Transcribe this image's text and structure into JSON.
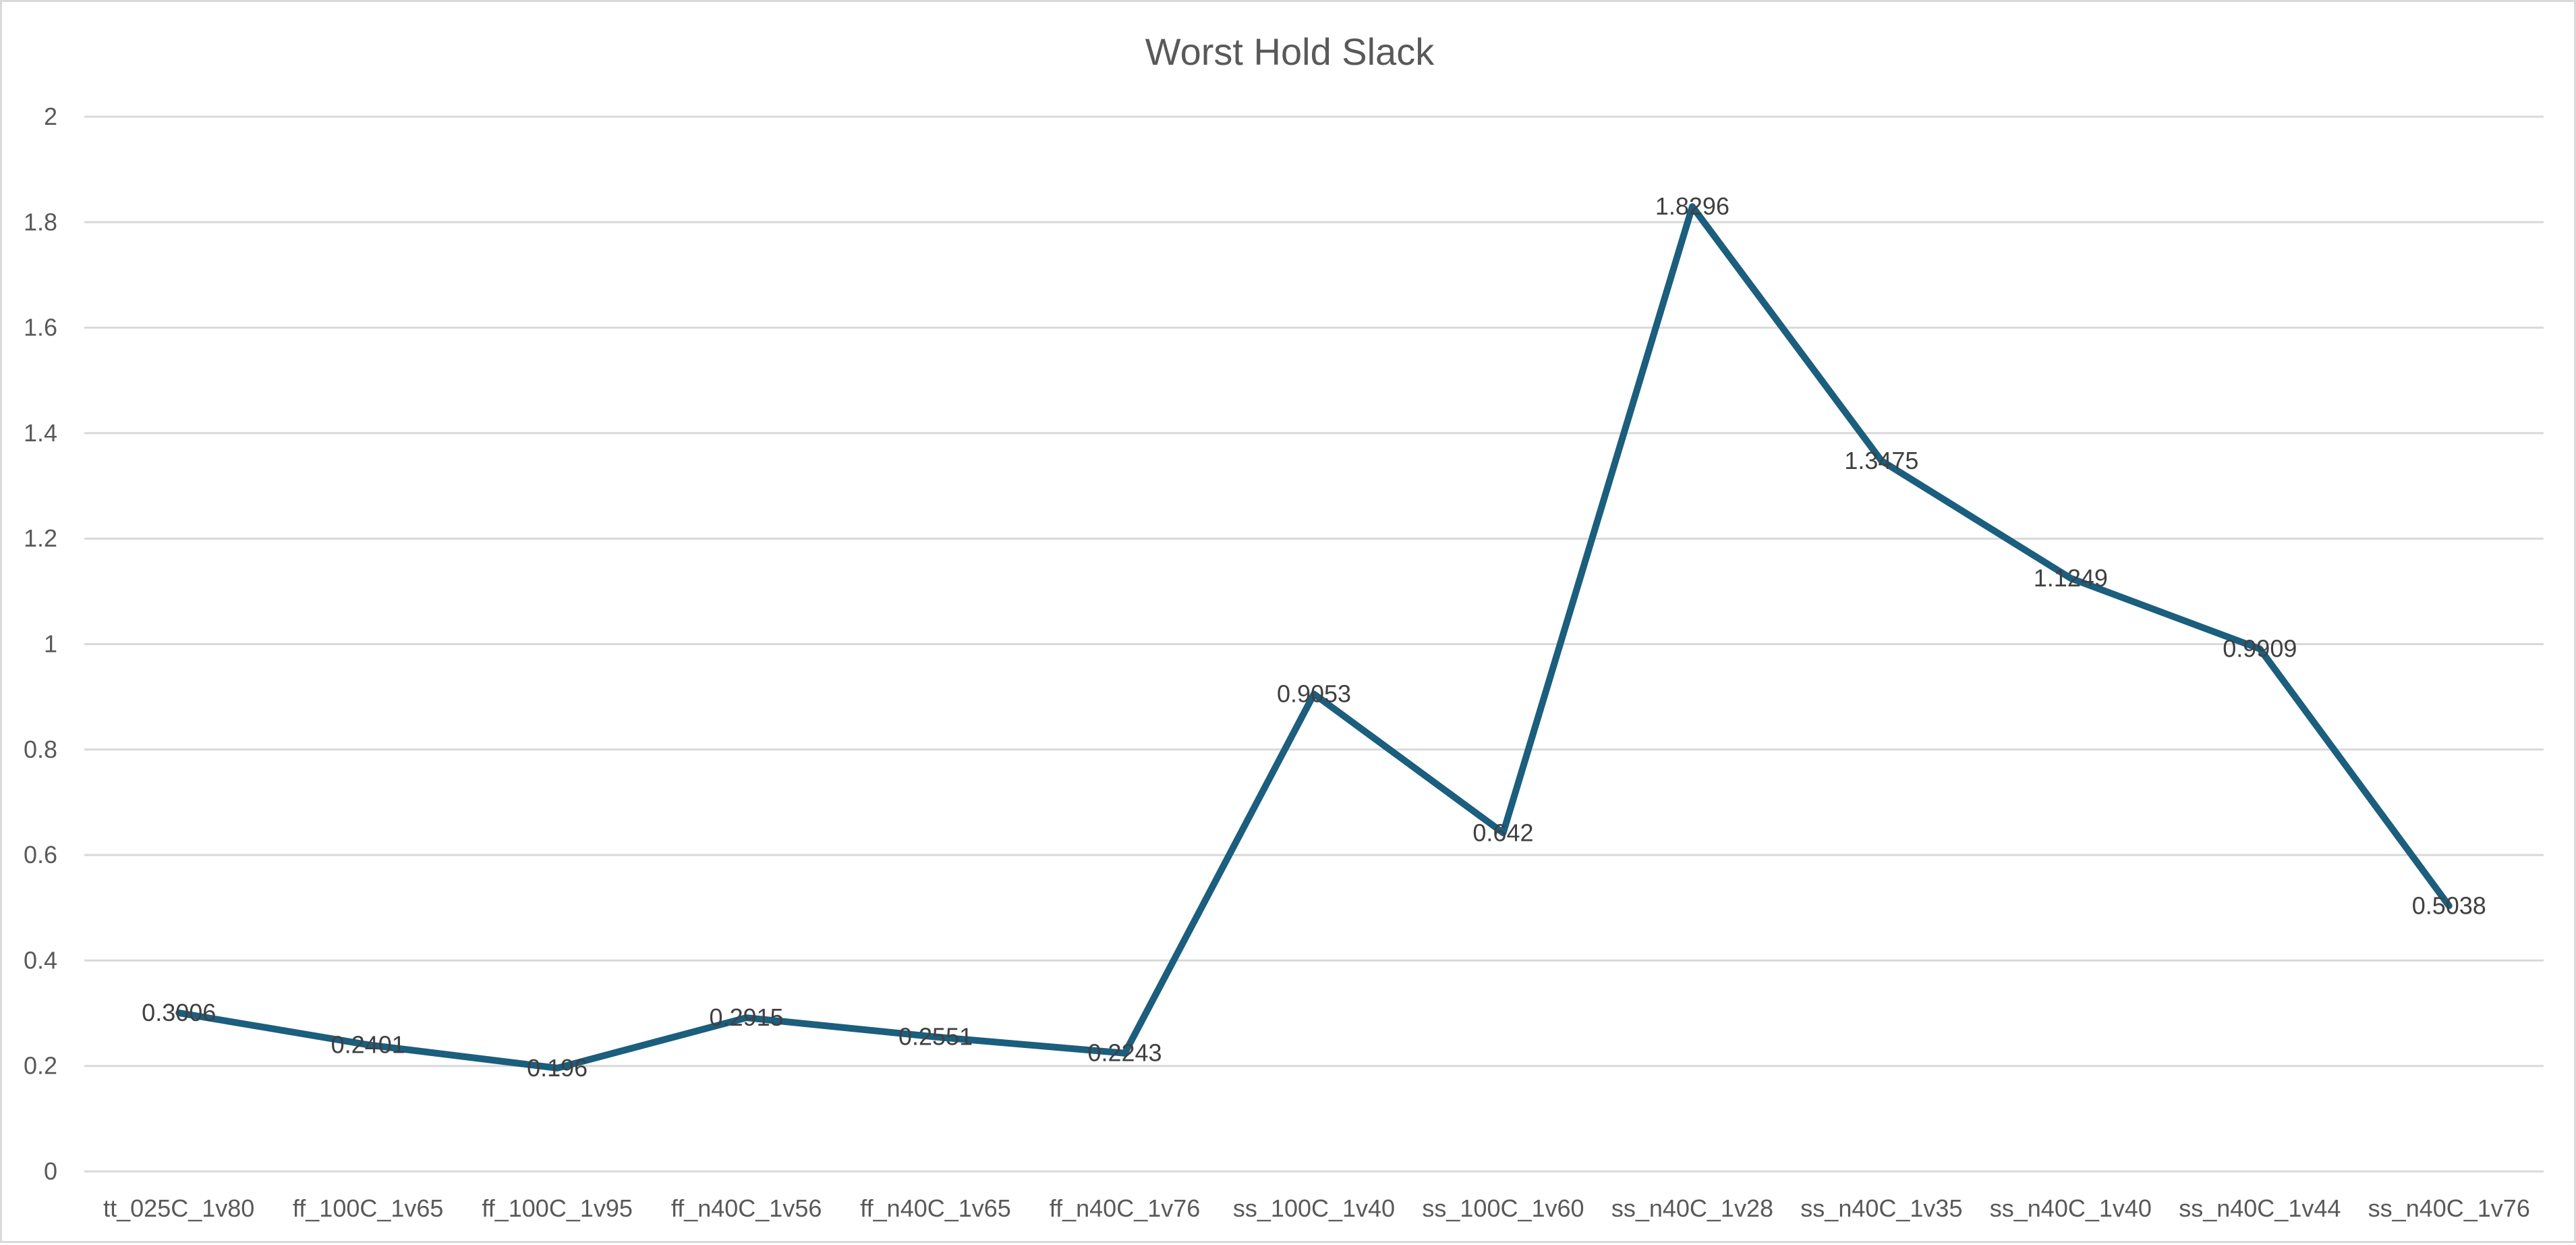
{
  "chart_data": {
    "type": "line",
    "title": "Worst Hold Slack",
    "xlabel": "",
    "ylabel": "",
    "ylim": [
      0,
      2
    ],
    "yticks": [
      0,
      0.2,
      0.4,
      0.6,
      0.8,
      1,
      1.2,
      1.4,
      1.6,
      1.8,
      2
    ],
    "grid": true,
    "legend": "none",
    "categories": [
      "tt_025C_1v80",
      "ff_100C_1v65",
      "ff_100C_1v95",
      "ff_n40C_1v56",
      "ff_n40C_1v65",
      "ff_n40C_1v76",
      "ss_100C_1v40",
      "ss_100C_1v60",
      "ss_n40C_1v28",
      "ss_n40C_1v35",
      "ss_n40C_1v40",
      "ss_n40C_1v44",
      "ss_n40C_1v76"
    ],
    "series": [
      {
        "color": "#1b5e7e",
        "values": [
          0.3006,
          0.2401,
          0.196,
          0.2915,
          0.2551,
          0.2243,
          0.9053,
          0.642,
          1.8296,
          1.3475,
          1.1249,
          0.9909,
          0.5038
        ],
        "labels": [
          "0.3006",
          "0.2401",
          "0.196",
          "0.2915",
          "0.2551",
          "0.2243",
          "0.9053",
          "0.642",
          "1.8296",
          "1.3475",
          "1.1249",
          "0.9909",
          "0.5038"
        ]
      }
    ]
  }
}
